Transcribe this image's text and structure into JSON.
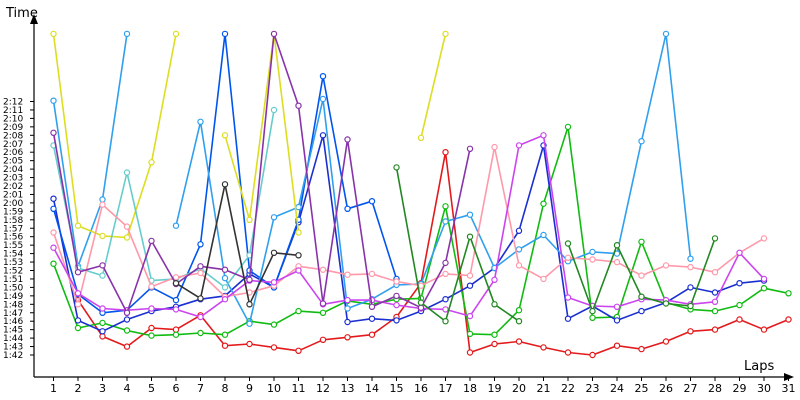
{
  "chart_data": {
    "type": "line",
    "title": "",
    "xlabel": "Laps",
    "ylabel": "Time",
    "x": [
      1,
      2,
      3,
      4,
      5,
      6,
      7,
      8,
      9,
      10,
      11,
      12,
      13,
      14,
      15,
      16,
      17,
      18,
      19,
      20,
      21,
      22,
      23,
      24,
      25,
      26,
      27,
      28,
      29,
      30,
      31
    ],
    "xlim": [
      1,
      31
    ],
    "ylim": [
      100,
      135
    ],
    "yticks": [
      102,
      103,
      104,
      105,
      106,
      107,
      108,
      109,
      110,
      111,
      112,
      113,
      114,
      115,
      116,
      117,
      118,
      119,
      120,
      121,
      122,
      123,
      124,
      125,
      126,
      127,
      128,
      129,
      130,
      131,
      132
    ],
    "yticklabels": [
      "1:42",
      "1:43",
      "1:44",
      "1:45",
      "1:46",
      "1:47",
      "1:48",
      "1:49",
      "1:50",
      "1:51",
      "1:52",
      "1:53",
      "1:54",
      "1:55",
      "1:56",
      "1:57",
      "1:58",
      "1:59",
      "2:00",
      "2:01",
      "2:02",
      "2:03",
      "2:04",
      "2:05",
      "2:06",
      "2:07",
      "2:08",
      "2:09",
      "2:10",
      "2:11",
      "2:12"
    ],
    "grid": false,
    "legend": "none",
    "series": [
      {
        "color": "#e31a1c",
        "values": [
          null,
          108.5,
          104.2,
          103.0,
          105.2,
          105.0,
          106.7,
          103.1,
          103.3,
          102.9,
          102.5,
          103.8,
          104.1,
          104.4,
          106.5,
          110.5,
          126.0,
          102.3,
          103.3,
          103.6,
          102.9,
          102.3,
          102.0,
          103.1,
          102.7,
          103.6,
          104.8,
          105.0,
          106.2,
          105.0,
          106.2
        ]
      },
      {
        "color": "#11bb11",
        "values": [
          112.8,
          105.2,
          105.8,
          104.9,
          104.3,
          104.4,
          104.6,
          104.4,
          106.0,
          105.6,
          107.2,
          107.0,
          108.4,
          108.0,
          108.6,
          108.7,
          119.6,
          104.5,
          104.4,
          107.3,
          119.9,
          129.0,
          106.4,
          106.5,
          115.4,
          108.2,
          107.4,
          107.2,
          107.9,
          109.9,
          109.3
        ]
      },
      {
        "color": "#1a2fd0",
        "values": [
          120.5,
          106.1,
          104.8,
          106.2,
          107.2,
          107.7,
          108.6,
          109.0,
          111.6,
          110.0,
          117.7,
          128.0,
          105.9,
          106.3,
          106.1,
          107.2,
          108.6,
          110.2,
          112.3,
          116.7,
          126.8,
          106.3,
          107.8,
          106.1,
          107.2,
          108.2,
          110.0,
          109.4,
          110.5,
          110.8,
          null
        ]
      },
      {
        "color": "#0055ee",
        "values": [
          119.3,
          109.2,
          107.0,
          107.3,
          110.0,
          108.5,
          115.1,
          140.0,
          112.0,
          110.0,
          118.0,
          135.0,
          119.3,
          120.2,
          111.0,
          null,
          null,
          null,
          null,
          null,
          null,
          null,
          null,
          null,
          null,
          null,
          null,
          null,
          null,
          null,
          null
        ]
      },
      {
        "color": "#30a0ee",
        "values": [
          132.1,
          112.5,
          120.4,
          140.0,
          null,
          117.3,
          129.6,
          111.1,
          105.7,
          118.3,
          119.5,
          132.3,
          107.5,
          108.6,
          110.3,
          110.4,
          117.8,
          118.6,
          112.3,
          114.5,
          116.2,
          113.1,
          114.2,
          114.0,
          127.3,
          140.0,
          113.4,
          null,
          null,
          null,
          null
        ]
      },
      {
        "color": "#dddd22",
        "values": [
          140.0,
          117.3,
          116.1,
          115.9,
          124.8,
          140.0,
          null,
          128.0,
          118.0,
          140.0,
          116.5,
          null,
          null,
          null,
          null,
          127.7,
          140.0,
          null,
          null,
          null,
          null,
          null,
          null,
          null,
          null,
          null,
          null,
          null,
          null,
          null,
          null
        ]
      },
      {
        "color": "#66cccc",
        "values": [
          126.8,
          112.3,
          111.4,
          123.6,
          110.8,
          111.0,
          112.2,
          110.0,
          113.8,
          131.0,
          null,
          null,
          null,
          null,
          null,
          null,
          null,
          null,
          null,
          null,
          null,
          null,
          null,
          null,
          null,
          null,
          null,
          null,
          null,
          null,
          null
        ]
      },
      {
        "color": "#ff99aa",
        "values": [
          116.5,
          108.0,
          119.8,
          117.2,
          110.1,
          111.2,
          111.7,
          108.9,
          109.4,
          110.2,
          112.5,
          112.1,
          111.5,
          111.6,
          110.7,
          110.2,
          111.6,
          111.4,
          126.6,
          112.6,
          111.0,
          113.5,
          113.3,
          113.0,
          111.4,
          112.6,
          112.4,
          111.8,
          114.1,
          115.8,
          null
        ]
      },
      {
        "color": "#cc44ee",
        "values": [
          114.7,
          109.3,
          107.5,
          107.3,
          107.5,
          107.4,
          106.5,
          108.6,
          110.8,
          110.6,
          112.0,
          108.0,
          108.5,
          108.5,
          107.9,
          107.5,
          107.4,
          106.6,
          110.9,
          126.8,
          128.0,
          108.8,
          107.8,
          107.7,
          108.6,
          108.5,
          108.0,
          108.3,
          114.1,
          111.0,
          null
        ]
      },
      {
        "color": "#8833aa",
        "values": [
          128.3,
          111.8,
          112.6,
          107.0,
          115.5,
          110.4,
          112.5,
          112.1,
          110.9,
          140.0,
          131.5,
          108.1,
          127.5,
          107.7,
          109.0,
          107.6,
          112.9,
          126.4,
          null,
          null,
          null,
          null,
          null,
          null,
          null,
          null,
          null,
          null,
          null,
          null,
          null
        ]
      },
      {
        "color": "#228822",
        "values": [
          null,
          null,
          null,
          null,
          null,
          null,
          null,
          null,
          null,
          null,
          null,
          null,
          null,
          null,
          124.2,
          108.2,
          106.0,
          116.0,
          108.0,
          106.0,
          null,
          115.2,
          107.2,
          115.0,
          108.9,
          108.1,
          107.8,
          115.8,
          null,
          null,
          null
        ]
      },
      {
        "color": "#333333",
        "values": [
          null,
          null,
          null,
          null,
          null,
          110.5,
          108.7,
          122.2,
          108.0,
          114.1,
          113.8,
          null,
          null,
          null,
          null,
          null,
          null,
          null,
          null,
          null,
          null,
          null,
          null,
          null,
          null,
          null,
          null,
          null,
          null,
          null,
          null
        ]
      }
    ]
  }
}
